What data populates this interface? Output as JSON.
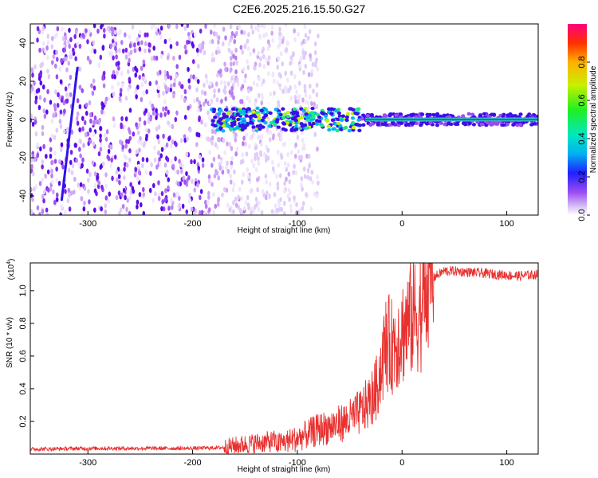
{
  "title": "C2E6.2025.216.15.50.G27",
  "chart_data": [
    {
      "type": "heatmap",
      "xlabel": "Height of straight line (km)",
      "ylabel": "Frequency (Hz)",
      "xlim": [
        -355,
        130
      ],
      "ylim": [
        -50,
        50
      ],
      "x_ticks": [
        -300,
        -200,
        -100,
        0,
        100
      ],
      "y_ticks": [
        -40,
        -20,
        0,
        20,
        40
      ],
      "colorbar": {
        "label": "Normalized spectral amplitude",
        "range": [
          0,
          1
        ],
        "ticks": [
          "0.0",
          "0.2",
          "0.4",
          "0.6",
          "0.8"
        ]
      },
      "features": {
        "noise_region_x": [
          -355,
          -120
        ],
        "signal_band_x": [
          -182,
          130
        ],
        "signal_band_center_freq": 0,
        "strong_core_x": [
          -35,
          130
        ],
        "diagonal_streak": {
          "x": [
            -325,
            -310
          ],
          "freq": [
            -42,
            27
          ]
        }
      }
    },
    {
      "type": "line",
      "xlabel": "Height of straight line (km)",
      "ylabel": "SNR (10 * v/v)",
      "y_scale_label": "(x10",
      "y_scale_exp": "4",
      "xlim": [
        -355,
        130
      ],
      "ylim": [
        0,
        1.17
      ],
      "x_ticks": [
        -300,
        -200,
        -100,
        0,
        100
      ],
      "y_ticks": [
        "0.2",
        "0.4",
        "0.6",
        "0.8",
        "1.0"
      ],
      "color": "#e8312f",
      "series": [
        {
          "x": [
            -355,
            -300,
            -250,
            -200,
            -170,
            -150,
            -120,
            -100,
            -80,
            -60,
            -50,
            -40,
            -30,
            -25,
            -20,
            -15,
            -10,
            0,
            10,
            20,
            30,
            40,
            50,
            70,
            90,
            110,
            130
          ],
          "y": [
            0.03,
            0.035,
            0.035,
            0.035,
            0.04,
            0.06,
            0.08,
            0.12,
            0.18,
            0.22,
            0.25,
            0.3,
            0.38,
            0.45,
            0.6,
            0.78,
            0.75,
            0.85,
            0.95,
            1.02,
            1.08,
            1.12,
            1.12,
            1.11,
            1.1,
            1.09,
            1.1
          ]
        }
      ]
    }
  ]
}
